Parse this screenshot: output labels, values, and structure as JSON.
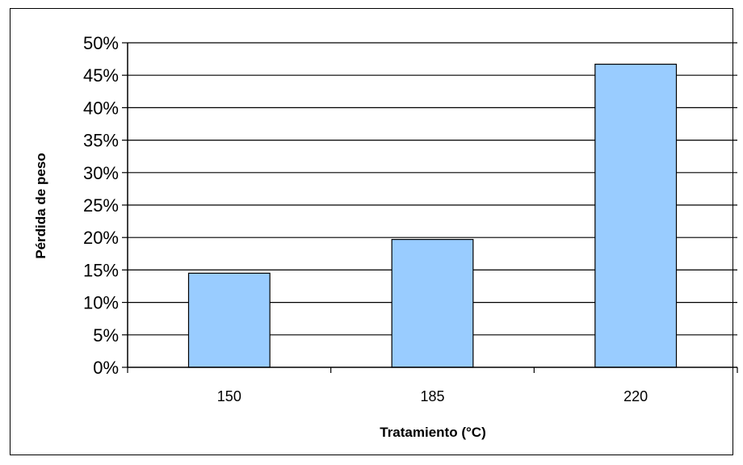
{
  "chart_data": {
    "type": "bar",
    "title": "",
    "xlabel": "Tratamiento (°C)",
    "ylabel": "Pérdida de peso",
    "categories": [
      "150",
      "185",
      "220"
    ],
    "values": [
      0.145,
      0.197,
      0.467
    ],
    "ylim": [
      0,
      0.5
    ],
    "ytick_step": 0.05,
    "ytick_labels": [
      "0%",
      "5%",
      "10%",
      "15%",
      "20%",
      "25%",
      "30%",
      "35%",
      "40%",
      "45%",
      "50%"
    ],
    "grid": true,
    "legend": "none",
    "bar_color": "#99ccff",
    "bar_edge_color": "#000000"
  }
}
